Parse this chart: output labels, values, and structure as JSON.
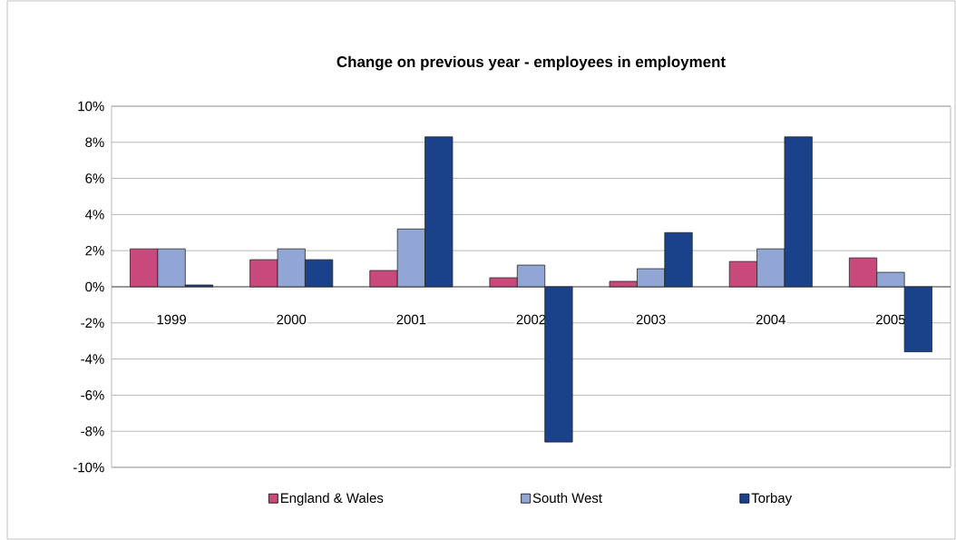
{
  "chart_data": {
    "type": "bar",
    "title": "Change on previous year - employees in employment",
    "categories": [
      "1999",
      "2000",
      "2001",
      "2002",
      "2003",
      "2004",
      "2005"
    ],
    "series": [
      {
        "name": "England & Wales",
        "color": "#c9497c",
        "values": [
          2.1,
          1.5,
          0.9,
          0.5,
          0.3,
          1.4,
          1.6
        ]
      },
      {
        "name": "South West",
        "color": "#92a6d6",
        "values": [
          2.1,
          2.1,
          3.2,
          1.2,
          1.0,
          2.1,
          0.8
        ]
      },
      {
        "name": "Torbay",
        "color": "#1a428a",
        "values": [
          0.1,
          1.5,
          8.3,
          -8.6,
          3.0,
          8.3,
          -3.6
        ]
      }
    ],
    "ylim": [
      -10,
      10
    ],
    "yticks": [
      {
        "value": -10,
        "label": "-10%"
      },
      {
        "value": -8,
        "label": "-8%"
      },
      {
        "value": -6,
        "label": "-6%"
      },
      {
        "value": -4,
        "label": "-4%"
      },
      {
        "value": -2,
        "label": "-2%"
      },
      {
        "value": 0,
        "label": "0%"
      },
      {
        "value": 2,
        "label": "2%"
      },
      {
        "value": 4,
        "label": "4%"
      },
      {
        "value": 6,
        "label": "6%"
      },
      {
        "value": 8,
        "label": "8%"
      },
      {
        "value": 10,
        "label": "10%"
      }
    ],
    "grid": "y",
    "legend": "bottom"
  }
}
